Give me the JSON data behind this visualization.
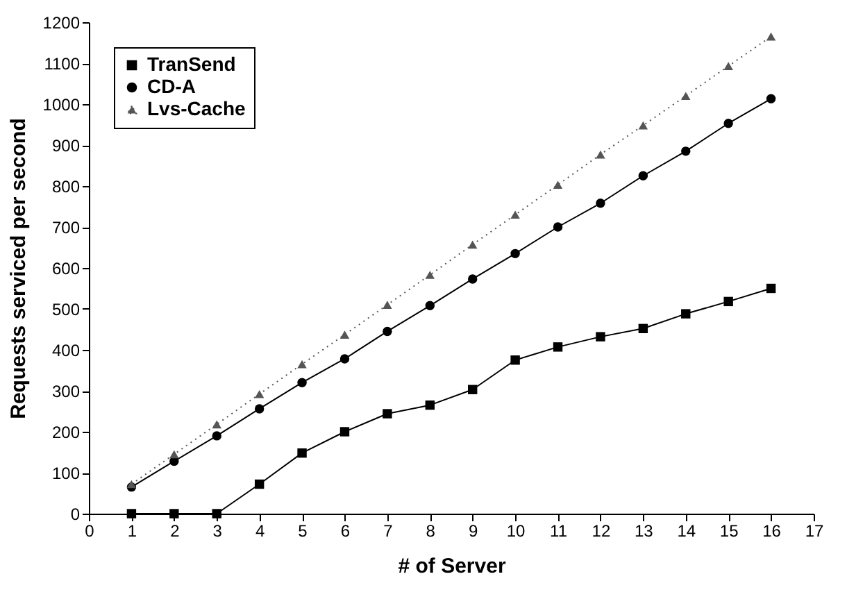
{
  "chart_data": {
    "type": "line",
    "xlabel": "# of Server",
    "ylabel": "Requests serviced per second",
    "x": [
      1,
      2,
      3,
      4,
      5,
      6,
      7,
      8,
      9,
      10,
      11,
      12,
      13,
      14,
      15,
      16
    ],
    "series": [
      {
        "name": "TranSend",
        "color": "#000000",
        "marker": "square",
        "line_style": "solid",
        "values": [
          0,
          0,
          0,
          72,
          148,
          200,
          244,
          265,
          303,
          375,
          407,
          432,
          452,
          488,
          518,
          550
        ]
      },
      {
        "name": "CD-A",
        "color": "#000000",
        "marker": "circle",
        "line_style": "solid",
        "values": [
          65,
          128,
          190,
          256,
          320,
          378,
          445,
          508,
          573,
          635,
          700,
          758,
          825,
          885,
          953,
          1013
        ]
      },
      {
        "name": "Lvs-Cache",
        "color": "#555555",
        "marker": "triangle",
        "line_style": "dotted",
        "values": [
          72,
          145,
          218,
          292,
          365,
          437,
          510,
          583,
          657,
          730,
          803,
          877,
          948,
          1020,
          1093,
          1165
        ]
      }
    ],
    "xlim": [
      0,
      17
    ],
    "xticks": [
      0,
      1,
      2,
      3,
      4,
      5,
      6,
      7,
      8,
      9,
      10,
      11,
      12,
      13,
      14,
      15,
      16,
      17
    ],
    "ylim": [
      0,
      1200
    ],
    "yticks": [
      0,
      100,
      200,
      300,
      400,
      500,
      600,
      700,
      800,
      900,
      1000,
      1100,
      1200
    ],
    "grid": false,
    "legend": "top left"
  }
}
